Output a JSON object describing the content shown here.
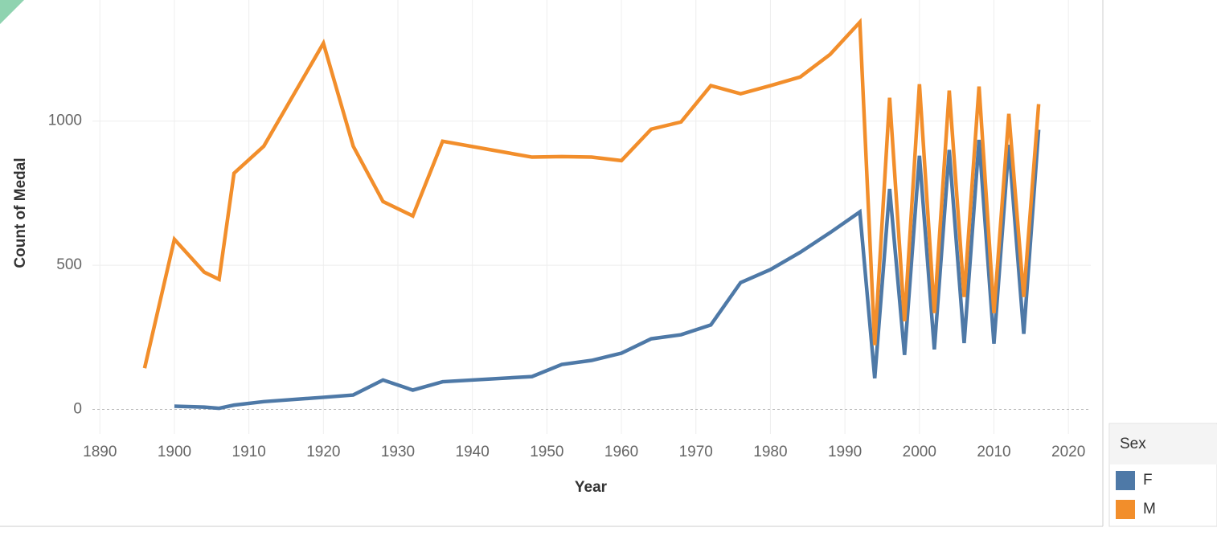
{
  "chart_data": {
    "type": "line",
    "x_label": "Year",
    "y_label": "Count of Medal",
    "x": [
      1896,
      1900,
      1904,
      1906,
      1908,
      1912,
      1920,
      1924,
      1928,
      1932,
      1936,
      1948,
      1952,
      1956,
      1960,
      1964,
      1968,
      1972,
      1976,
      1980,
      1984,
      1988,
      1992,
      1994,
      1996,
      1998,
      2000,
      2002,
      2004,
      2006,
      2008,
      2010,
      2012,
      2014,
      2016
    ],
    "series": [
      {
        "name": "F",
        "color": "#4e79a7",
        "values": [
          null,
          11,
          8,
          4,
          15,
          27,
          42,
          50,
          102,
          67,
          96,
          114,
          156,
          170,
          195,
          245,
          259,
          293,
          440,
          485,
          545,
          613,
          685,
          108,
          765,
          189,
          880,
          208,
          900,
          230,
          935,
          228,
          918,
          262,
          970
        ]
      },
      {
        "name": "M",
        "color": "#f28e2b",
        "values": [
          143,
          590,
          476,
          451,
          819,
          913,
          1270,
          913,
          721,
          671,
          930,
          875,
          877,
          875,
          863,
          972,
          997,
          1123,
          1095,
          1123,
          1153,
          1231,
          1343,
          223,
          1081,
          306,
          1128,
          334,
          1106,
          390,
          1120,
          334,
          1025,
          390,
          1059
        ]
      }
    ],
    "xlim": [
      1889,
      2023
    ],
    "ylim": [
      -85,
      1420
    ],
    "xticks": [
      1890,
      1900,
      1910,
      1920,
      1930,
      1940,
      1950,
      1960,
      1970,
      1980,
      1990,
      2000,
      2010,
      2020
    ],
    "yticks": [
      0,
      500,
      1000
    ],
    "grid": true,
    "legend_title": "Sex",
    "legend": "bottom-right"
  }
}
